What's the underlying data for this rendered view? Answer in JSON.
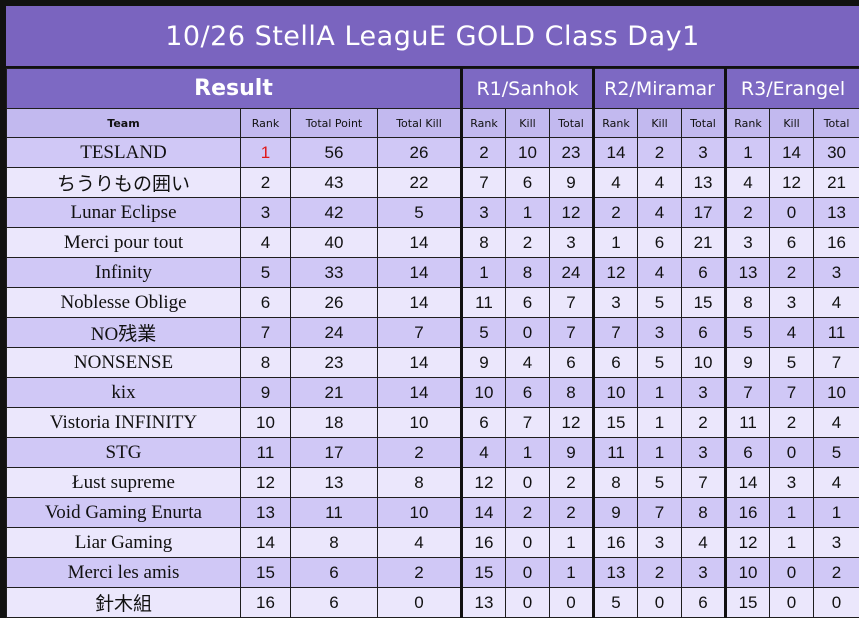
{
  "title": "10/26 StellA LeaguE GOLD Class Day1",
  "header": {
    "result": "Result",
    "rounds": [
      "R1/Sanhok",
      "R2/Miramar",
      "R3/Erangel"
    ],
    "columns": [
      "Team",
      "Rank",
      "Total Point",
      "Total Kill"
    ],
    "round_columns": [
      "Rank",
      "Kill",
      "Total"
    ]
  },
  "accent_colors": {
    "title_bg": "#7a64bf",
    "row_dark": "#d0c8f6",
    "row_light": "#ebe7fc",
    "first_place": "#e01919"
  },
  "rows": [
    {
      "team": "TESLAND",
      "rank": "1",
      "total_point": "56",
      "total_kill": "26",
      "r1": [
        "2",
        "10",
        "23"
      ],
      "r2": [
        "14",
        "2",
        "3"
      ],
      "r3": [
        "1",
        "14",
        "30"
      ]
    },
    {
      "team": "ちうりもの囲い",
      "rank": "2",
      "total_point": "43",
      "total_kill": "22",
      "r1": [
        "7",
        "6",
        "9"
      ],
      "r2": [
        "4",
        "4",
        "13"
      ],
      "r3": [
        "4",
        "12",
        "21"
      ]
    },
    {
      "team": "Lunar Eclipse",
      "rank": "3",
      "total_point": "42",
      "total_kill": "5",
      "r1": [
        "3",
        "1",
        "12"
      ],
      "r2": [
        "2",
        "4",
        "17"
      ],
      "r3": [
        "2",
        "0",
        "13"
      ]
    },
    {
      "team": "Merci pour tout",
      "rank": "4",
      "total_point": "40",
      "total_kill": "14",
      "r1": [
        "8",
        "2",
        "3"
      ],
      "r2": [
        "1",
        "6",
        "21"
      ],
      "r3": [
        "3",
        "6",
        "16"
      ]
    },
    {
      "team": "Infinity",
      "rank": "5",
      "total_point": "33",
      "total_kill": "14",
      "r1": [
        "1",
        "8",
        "24"
      ],
      "r2": [
        "12",
        "4",
        "6"
      ],
      "r3": [
        "13",
        "2",
        "3"
      ]
    },
    {
      "team": "Noblesse Oblige",
      "rank": "6",
      "total_point": "26",
      "total_kill": "14",
      "r1": [
        "11",
        "6",
        "7"
      ],
      "r2": [
        "3",
        "5",
        "15"
      ],
      "r3": [
        "8",
        "3",
        "4"
      ]
    },
    {
      "team": "NO残業",
      "rank": "7",
      "total_point": "24",
      "total_kill": "7",
      "r1": [
        "5",
        "0",
        "7"
      ],
      "r2": [
        "7",
        "3",
        "6"
      ],
      "r3": [
        "5",
        "4",
        "11"
      ]
    },
    {
      "team": "NONSENSE",
      "rank": "8",
      "total_point": "23",
      "total_kill": "14",
      "r1": [
        "9",
        "4",
        "6"
      ],
      "r2": [
        "6",
        "5",
        "10"
      ],
      "r3": [
        "9",
        "5",
        "7"
      ]
    },
    {
      "team": "kix",
      "rank": "9",
      "total_point": "21",
      "total_kill": "14",
      "r1": [
        "10",
        "6",
        "8"
      ],
      "r2": [
        "10",
        "1",
        "3"
      ],
      "r3": [
        "7",
        "7",
        "10"
      ]
    },
    {
      "team": "Vistoria INFINITY",
      "rank": "10",
      "total_point": "18",
      "total_kill": "10",
      "r1": [
        "6",
        "7",
        "12"
      ],
      "r2": [
        "15",
        "1",
        "2"
      ],
      "r3": [
        "11",
        "2",
        "4"
      ]
    },
    {
      "team": "STG",
      "rank": "11",
      "total_point": "17",
      "total_kill": "2",
      "r1": [
        "4",
        "1",
        "9"
      ],
      "r2": [
        "11",
        "1",
        "3"
      ],
      "r3": [
        "6",
        "0",
        "5"
      ]
    },
    {
      "team": "Łust supreme",
      "rank": "12",
      "total_point": "13",
      "total_kill": "8",
      "r1": [
        "12",
        "0",
        "2"
      ],
      "r2": [
        "8",
        "5",
        "7"
      ],
      "r3": [
        "14",
        "3",
        "4"
      ]
    },
    {
      "team": "Void Gaming Enurta",
      "rank": "13",
      "total_point": "11",
      "total_kill": "10",
      "r1": [
        "14",
        "2",
        "2"
      ],
      "r2": [
        "9",
        "7",
        "8"
      ],
      "r3": [
        "16",
        "1",
        "1"
      ]
    },
    {
      "team": "Liar Gaming",
      "rank": "14",
      "total_point": "8",
      "total_kill": "4",
      "r1": [
        "16",
        "0",
        "1"
      ],
      "r2": [
        "16",
        "3",
        "4"
      ],
      "r3": [
        "12",
        "1",
        "3"
      ]
    },
    {
      "team": "Merci les amis",
      "rank": "15",
      "total_point": "6",
      "total_kill": "2",
      "r1": [
        "15",
        "0",
        "1"
      ],
      "r2": [
        "13",
        "2",
        "3"
      ],
      "r3": [
        "10",
        "0",
        "2"
      ]
    },
    {
      "team": "針木組",
      "rank": "16",
      "total_point": "6",
      "total_kill": "0",
      "r1": [
        "13",
        "0",
        "0"
      ],
      "r2": [
        "5",
        "0",
        "6"
      ],
      "r3": [
        "15",
        "0",
        "0"
      ]
    }
  ]
}
